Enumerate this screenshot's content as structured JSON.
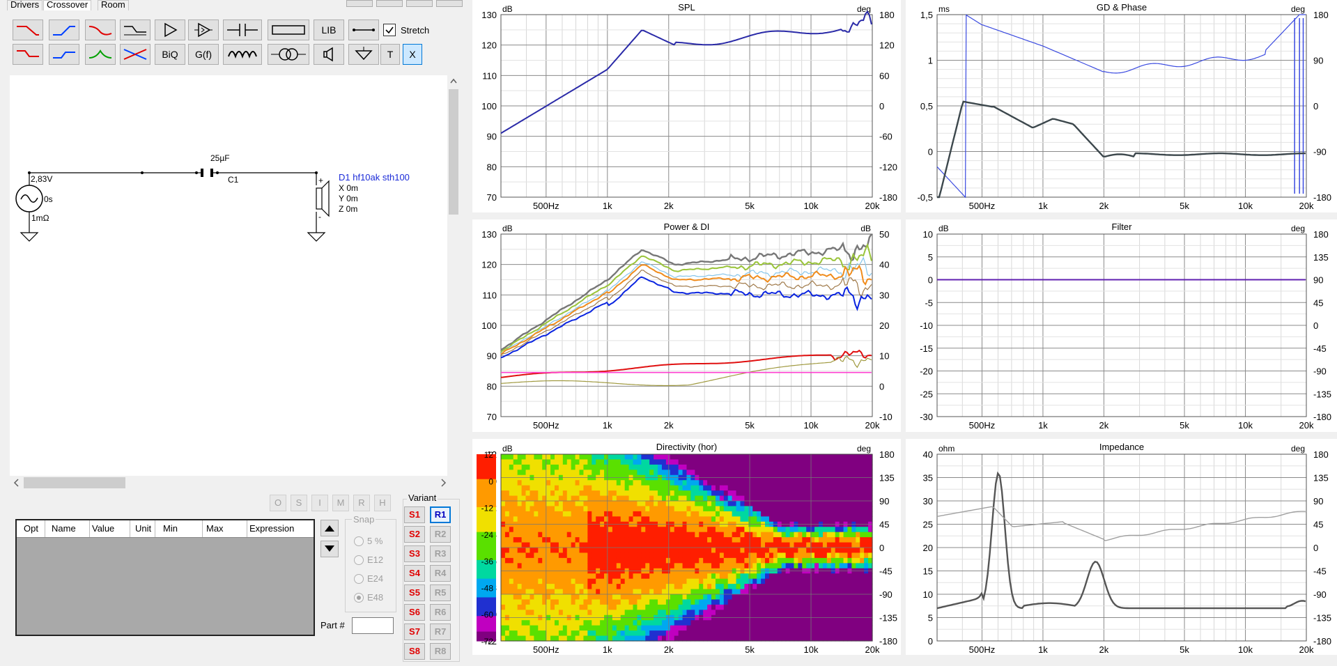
{
  "tabs": [
    "Drivers",
    "Crossover",
    "Room"
  ],
  "active_tab": "Crossover",
  "toolbar": {
    "row1": [
      {
        "name": "lowpass-filter-icon",
        "color": "#e00000"
      },
      {
        "name": "highpass-filter-icon",
        "color": "#0040ff"
      },
      {
        "name": "bandpass-filter-icon",
        "color": "#e00000"
      },
      {
        "name": "shelf-filter-icon",
        "color": "#000000"
      },
      {
        "name": "amplifier-icon",
        "color": "#000000"
      },
      {
        "name": "buffer-amp-icon",
        "color": "#000000"
      },
      {
        "name": "capacitor-icon",
        "color": "#000000"
      },
      {
        "name": "resistor-icon",
        "color": "#000000"
      },
      {
        "name": "lib-button",
        "label": "LIB"
      },
      {
        "name": "wire-icon",
        "color": "#000000"
      }
    ],
    "row2": [
      {
        "name": "lowpass-shelf-icon",
        "color": "#e00000"
      },
      {
        "name": "highpass-shelf-icon",
        "color": "#0040ff"
      },
      {
        "name": "notch-filter-icon",
        "color": "#00a000"
      },
      {
        "name": "allpass-filter-icon",
        "color": "#0040ff"
      },
      {
        "name": "biquad-button",
        "label": "BiQ"
      },
      {
        "name": "function-button",
        "label": "G(f)"
      },
      {
        "name": "inductor-icon",
        "color": "#000000"
      },
      {
        "name": "transformer-icon",
        "color": "#000000"
      },
      {
        "name": "speaker-icon",
        "color": "#000000"
      },
      {
        "name": "ground-icon",
        "color": "#000000"
      },
      {
        "name": "text-button",
        "label": "T"
      },
      {
        "name": "delete-button",
        "label": "X"
      }
    ],
    "stretch_label": "Stretch",
    "stretch_checked": true
  },
  "schematic": {
    "source_voltage": "2,83V",
    "source_delay": "0s",
    "source_resistance": "1mΩ",
    "cap_value": "25µF",
    "cap_name": "C1",
    "driver_name": "D1 hf10ak sth100",
    "driver_x": "X 0m",
    "driver_y": "Y 0m",
    "driver_z": "Z 0m",
    "plus": "+",
    "minus": "-"
  },
  "opt_buttons": [
    "O",
    "S",
    "I",
    "M",
    "R",
    "H"
  ],
  "params_table": {
    "headers": [
      "Opt",
      "Name",
      "Value",
      "Unit",
      "Min",
      "Max",
      "Expression"
    ]
  },
  "snap": {
    "label": "Snap",
    "options": [
      "5 %",
      "E12",
      "E24",
      "E48"
    ],
    "selected": "E48"
  },
  "part_label": "Part #",
  "variant": {
    "label": "Variant",
    "s": [
      "S1",
      "S2",
      "S3",
      "S4",
      "S5",
      "S6",
      "S7",
      "S8"
    ],
    "r": [
      "R1",
      "R2",
      "R3",
      "R4",
      "R5",
      "R6",
      "R7",
      "R8"
    ],
    "active_r": "R1"
  },
  "freq_ticks": [
    "500Hz",
    "1k",
    "2k",
    "5k",
    "10k",
    "20k"
  ],
  "graphs": {
    "spl": {
      "title": "SPL",
      "left_unit": "dB",
      "right_unit": "deg",
      "left_ticks": [
        "130",
        "120",
        "110",
        "100",
        "90",
        "80",
        "70"
      ],
      "right_ticks": [
        "180",
        "120",
        "60",
        "0",
        "-60",
        "-120",
        "-180"
      ]
    },
    "gd": {
      "title": "GD & Phase",
      "left_unit": "ms",
      "right_unit": "deg",
      "left_ticks": [
        "1,5",
        "1",
        "0,5",
        "0",
        "-0,5"
      ],
      "right_ticks": [
        "180",
        "90",
        "0",
        "-90",
        "-180"
      ]
    },
    "power": {
      "title": "Power & DI",
      "left_unit": "dB",
      "right_unit": "dB",
      "left_ticks": [
        "130",
        "120",
        "110",
        "100",
        "90",
        "80",
        "70"
      ],
      "right_ticks": [
        "50",
        "40",
        "30",
        "20",
        "10",
        "0",
        "-10"
      ]
    },
    "filter": {
      "title": "Filter",
      "left_unit": "dB",
      "right_unit": "deg",
      "left_ticks": [
        "10",
        "5",
        "0",
        "-5",
        "-10",
        "-15",
        "-20",
        "-25",
        "-30"
      ],
      "right_ticks": [
        "180",
        "135",
        "90",
        "45",
        "0",
        "-45",
        "-90",
        "-135",
        "-180"
      ]
    },
    "directivity": {
      "title": "Directivity (hor)",
      "left_unit": "dB",
      "right_unit": "deg",
      "left_ticks": [
        "12",
        "0",
        "-12",
        "-24",
        "-36",
        "-48",
        "-60",
        "-72"
      ],
      "right_ticks": [
        "180",
        "135",
        "90",
        "45",
        "0",
        "-45",
        "-90",
        "-135",
        "-180"
      ]
    },
    "impedance": {
      "title": "Impedance",
      "left_unit": "ohm",
      "right_unit": "deg",
      "left_ticks": [
        "40",
        "35",
        "30",
        "25",
        "20",
        "15",
        "10",
        "5",
        "0"
      ],
      "right_ticks": [
        "180",
        "135",
        "90",
        "45",
        "0",
        "-45",
        "-90",
        "-135",
        "-180"
      ]
    }
  },
  "colors": {
    "spl": "#2a2aa8",
    "power_line": "#0a24e0",
    "di": "#e01010",
    "gd": "#3c474c",
    "phase": "#3a4ae0",
    "filter": "#6020b0",
    "imp": "#555555",
    "imp_phase": "#a0a0a0"
  }
}
